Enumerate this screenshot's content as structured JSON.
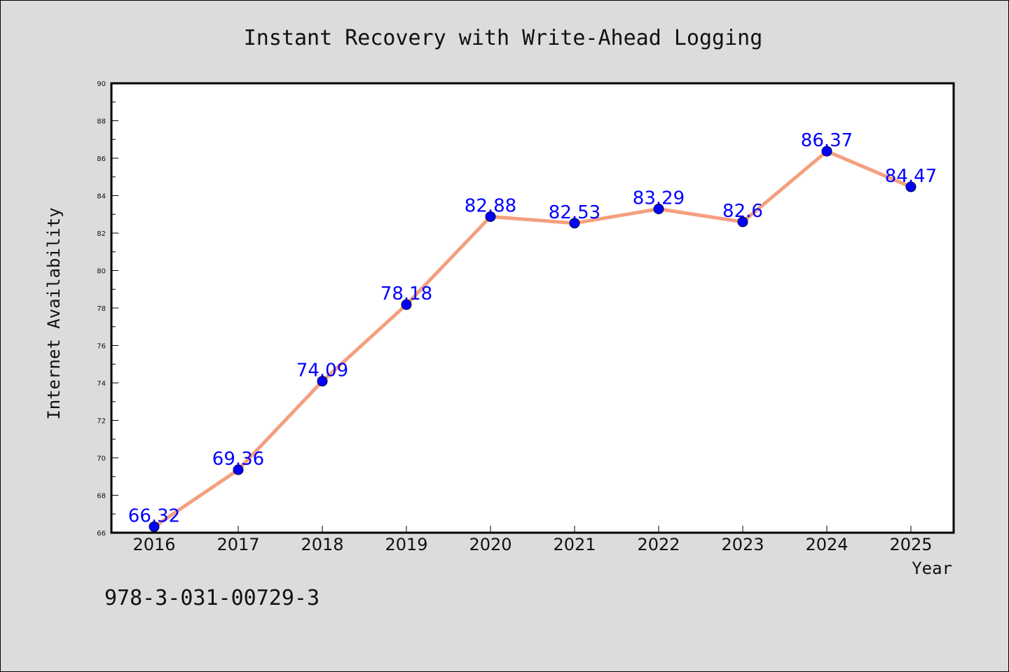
{
  "chart_data": {
    "type": "line",
    "title": "Instant Recovery with Write-Ahead Logging",
    "xlabel": "Year",
    "ylabel": "Internet Availability",
    "x": [
      "2016",
      "2017",
      "2018",
      "2019",
      "2020",
      "2021",
      "2022",
      "2023",
      "2024",
      "2025"
    ],
    "series": [
      {
        "values": [
          66.32,
          69.36,
          74.09,
          78.18,
          82.88,
          82.53,
          83.29,
          82.6,
          86.37,
          84.47
        ],
        "labels": [
          "66.32",
          "69.36",
          "74.09",
          "78.18",
          "82.88",
          "82.53",
          "83.29",
          "82.6",
          "86.37",
          "84.47"
        ],
        "line_color": "#f4a07f",
        "marker_color": "#0000ff"
      }
    ],
    "ylim": [
      66,
      90
    ],
    "yticks": [
      "66",
      "68",
      "70",
      "72",
      "74",
      "76",
      "78",
      "80",
      "82",
      "84",
      "86",
      "88",
      "90"
    ],
    "grid": false,
    "legend": "none",
    "label_color": "#0000ff",
    "plot_background": "#ffffff",
    "figure_background": "#dcdcdc"
  },
  "footer": {
    "isbn": "978-3-031-00729-3"
  }
}
